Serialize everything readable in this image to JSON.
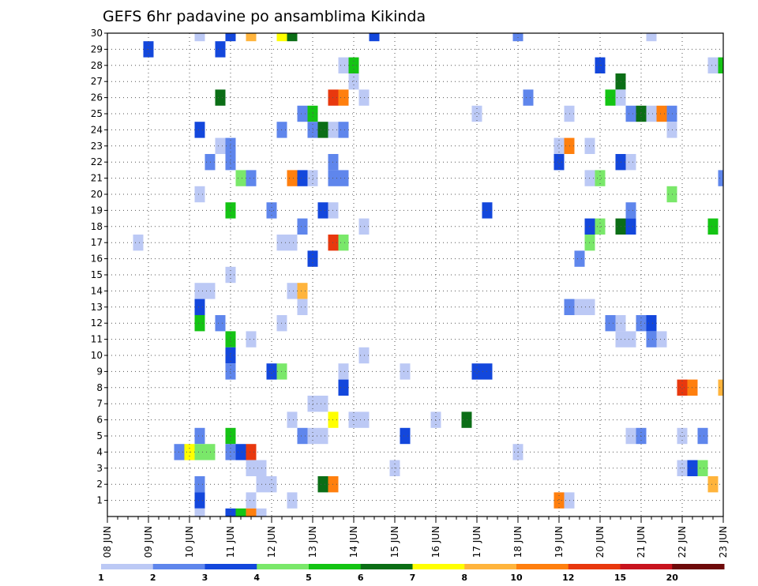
{
  "chart_data": {
    "type": "heatmap",
    "title": "GEFS 6hr padavine po ansamblima Kikinda",
    "xlabel": "",
    "ylabel": "",
    "x_ticks": [
      "08 JUN",
      "09 JUN",
      "10 JUN",
      "11 JUN",
      "12 JUN",
      "13 JUN",
      "14 JUN",
      "15 JUN",
      "16 JUN",
      "17 JUN",
      "18 JUN",
      "19 JUN",
      "20 JUN",
      "21 JUN",
      "22 JUN",
      "23 JUN"
    ],
    "y_ticks": [
      "1",
      "2",
      "3",
      "4",
      "5",
      "6",
      "7",
      "8",
      "9",
      "10",
      "11",
      "12",
      "13",
      "14",
      "15",
      "16",
      "17",
      "18",
      "19",
      "20",
      "21",
      "22",
      "23",
      "24",
      "25",
      "26",
      "27",
      "28",
      "29",
      "30"
    ],
    "xlim": [
      0,
      60
    ],
    "ylim": [
      0,
      30
    ],
    "x_unit": "6-hour steps since 08 JUN",
    "grid": true,
    "legend": {
      "placement": "bottom",
      "labels": [
        "1",
        "2",
        "3",
        "4",
        "5",
        "6",
        "7",
        "8",
        "10",
        "12",
        "15",
        "20"
      ],
      "colors": [
        "#bcc9f5",
        "#5f86ec",
        "#1347dc",
        "#7ae86a",
        "#14c414",
        "#0b6e16",
        "#ffff00",
        "#ffb43c",
        "#ff7f0e",
        "#e8380e",
        "#c8141e",
        "#6e0a0a"
      ]
    },
    "cells": [
      [
        9,
        30,
        1
      ],
      [
        12,
        30,
        3
      ],
      [
        14,
        30,
        8
      ],
      [
        17,
        30,
        7
      ],
      [
        18,
        30,
        6
      ],
      [
        26,
        30,
        3
      ],
      [
        40,
        30,
        2
      ],
      [
        53,
        30,
        1
      ],
      [
        4,
        29,
        3
      ],
      [
        11,
        29,
        3
      ],
      [
        23,
        28,
        1
      ],
      [
        24,
        28,
        5
      ],
      [
        48,
        28,
        3
      ],
      [
        59,
        28,
        1
      ],
      [
        60,
        28,
        5
      ],
      [
        24,
        27,
        1
      ],
      [
        50,
        27,
        6
      ],
      [
        11,
        26,
        6
      ],
      [
        22,
        26,
        12
      ],
      [
        23,
        26,
        10
      ],
      [
        25,
        26,
        1
      ],
      [
        41,
        26,
        2
      ],
      [
        49,
        26,
        5
      ],
      [
        50,
        26,
        1
      ],
      [
        19,
        25,
        2
      ],
      [
        20,
        25,
        5
      ],
      [
        36,
        25,
        1
      ],
      [
        45,
        25,
        1
      ],
      [
        51,
        25,
        2
      ],
      [
        52,
        25,
        6
      ],
      [
        53,
        25,
        1
      ],
      [
        54,
        25,
        10
      ],
      [
        55,
        25,
        2
      ],
      [
        9,
        24,
        3
      ],
      [
        17,
        24,
        2
      ],
      [
        20,
        24,
        2
      ],
      [
        21,
        24,
        6
      ],
      [
        22,
        24,
        1
      ],
      [
        23,
        24,
        2
      ],
      [
        55,
        24,
        1
      ],
      [
        11,
        23,
        1
      ],
      [
        12,
        23,
        2
      ],
      [
        44,
        23,
        1
      ],
      [
        45,
        23,
        10
      ],
      [
        47,
        23,
        1
      ],
      [
        10,
        22,
        2
      ],
      [
        12,
        22,
        2
      ],
      [
        22,
        22,
        2
      ],
      [
        44,
        22,
        3
      ],
      [
        50,
        22,
        3
      ],
      [
        51,
        22,
        1
      ],
      [
        13,
        21,
        4
      ],
      [
        14,
        21,
        2
      ],
      [
        18,
        21,
        10
      ],
      [
        19,
        21,
        3
      ],
      [
        20,
        21,
        1
      ],
      [
        22,
        21,
        2
      ],
      [
        23,
        21,
        2
      ],
      [
        47,
        21,
        1
      ],
      [
        48,
        21,
        4
      ],
      [
        60,
        21,
        2
      ],
      [
        9,
        20,
        1
      ],
      [
        55,
        20,
        4
      ],
      [
        12,
        19,
        5
      ],
      [
        16,
        19,
        2
      ],
      [
        21,
        19,
        3
      ],
      [
        22,
        19,
        1
      ],
      [
        37,
        19,
        3
      ],
      [
        51,
        19,
        2
      ],
      [
        19,
        18,
        2
      ],
      [
        25,
        18,
        1
      ],
      [
        47,
        18,
        3
      ],
      [
        48,
        18,
        4
      ],
      [
        50,
        18,
        6
      ],
      [
        51,
        18,
        3
      ],
      [
        59,
        18,
        5
      ],
      [
        3,
        17,
        1
      ],
      [
        17,
        17,
        1
      ],
      [
        18,
        17,
        1
      ],
      [
        22,
        17,
        12
      ],
      [
        23,
        17,
        4
      ],
      [
        47,
        17,
        4
      ],
      [
        20,
        16,
        3
      ],
      [
        46,
        16,
        2
      ],
      [
        12,
        15,
        1
      ],
      [
        9,
        14,
        1
      ],
      [
        10,
        14,
        1
      ],
      [
        18,
        14,
        1
      ],
      [
        19,
        14,
        8
      ],
      [
        9,
        13,
        3
      ],
      [
        19,
        13,
        1
      ],
      [
        45,
        13,
        2
      ],
      [
        46,
        13,
        1
      ],
      [
        47,
        13,
        1
      ],
      [
        9,
        12,
        5
      ],
      [
        11,
        12,
        2
      ],
      [
        17,
        12,
        1
      ],
      [
        49,
        12,
        2
      ],
      [
        50,
        12,
        1
      ],
      [
        52,
        12,
        2
      ],
      [
        53,
        12,
        3
      ],
      [
        12,
        11,
        5
      ],
      [
        14,
        11,
        1
      ],
      [
        50,
        11,
        1
      ],
      [
        51,
        11,
        1
      ],
      [
        53,
        11,
        2
      ],
      [
        54,
        11,
        1
      ],
      [
        12,
        10,
        3
      ],
      [
        25,
        10,
        1
      ],
      [
        12,
        9,
        2
      ],
      [
        16,
        9,
        3
      ],
      [
        17,
        9,
        4
      ],
      [
        23,
        9,
        1
      ],
      [
        29,
        9,
        1
      ],
      [
        36,
        9,
        3
      ],
      [
        37,
        9,
        3
      ],
      [
        23,
        8,
        3
      ],
      [
        56,
        8,
        12
      ],
      [
        57,
        8,
        10
      ],
      [
        60,
        8,
        8
      ],
      [
        20,
        7,
        1
      ],
      [
        21,
        7,
        1
      ],
      [
        18,
        6,
        1
      ],
      [
        22,
        6,
        7
      ],
      [
        24,
        6,
        1
      ],
      [
        25,
        6,
        1
      ],
      [
        32,
        6,
        1
      ],
      [
        35,
        6,
        6
      ],
      [
        9,
        5,
        2
      ],
      [
        12,
        5,
        5
      ],
      [
        19,
        5,
        2
      ],
      [
        20,
        5,
        1
      ],
      [
        21,
        5,
        1
      ],
      [
        29,
        5,
        3
      ],
      [
        51,
        5,
        1
      ],
      [
        52,
        5,
        2
      ],
      [
        56,
        5,
        1
      ],
      [
        58,
        5,
        2
      ],
      [
        7,
        4,
        2
      ],
      [
        8,
        4,
        7
      ],
      [
        9,
        4,
        4
      ],
      [
        10,
        4,
        4
      ],
      [
        12,
        4,
        2
      ],
      [
        13,
        4,
        3
      ],
      [
        14,
        4,
        12
      ],
      [
        40,
        4,
        1
      ],
      [
        14,
        3,
        1
      ],
      [
        15,
        3,
        1
      ],
      [
        28,
        3,
        1
      ],
      [
        56,
        3,
        1
      ],
      [
        57,
        3,
        3
      ],
      [
        58,
        3,
        4
      ],
      [
        9,
        2,
        2
      ],
      [
        15,
        2,
        1
      ],
      [
        16,
        2,
        1
      ],
      [
        21,
        2,
        6
      ],
      [
        22,
        2,
        10
      ],
      [
        59,
        2,
        8
      ],
      [
        9,
        1,
        3
      ],
      [
        14,
        1,
        1
      ],
      [
        18,
        1,
        1
      ],
      [
        44,
        1,
        10
      ],
      [
        45,
        1,
        1
      ],
      [
        9,
        0,
        1
      ],
      [
        12,
        0,
        3
      ],
      [
        13,
        0,
        5
      ],
      [
        14,
        0,
        10
      ],
      [
        15,
        0,
        1
      ]
    ]
  }
}
